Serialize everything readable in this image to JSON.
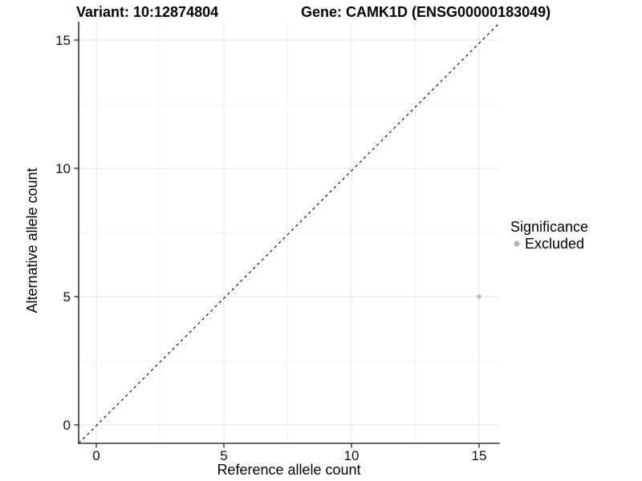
{
  "chart_data": {
    "type": "scatter",
    "title_left": "Variant: 10:12874804",
    "title_right": "Gene: CAMK1D (ENSG00000183049)",
    "xlabel": "Reference allele count",
    "ylabel": "Alternative allele count",
    "x_ticks": [
      0,
      5,
      10,
      15
    ],
    "y_ticks": [
      0,
      5,
      10,
      15
    ],
    "xlim": [
      -0.7,
      15.8
    ],
    "ylim": [
      -0.7,
      15.7
    ],
    "grid": "major at ticks, minor at 2.5/7.5/12.5, light gray, white panel",
    "reference_line": {
      "type": "identity y=x",
      "style": "dashed",
      "color": "#000000"
    },
    "series": [
      {
        "name": "Excluded",
        "color": "#bebebe",
        "points": [
          {
            "x": 15,
            "y": 5
          }
        ]
      }
    ],
    "legend": {
      "position": "right",
      "title": "Significance",
      "entries": [
        {
          "label": "Excluded",
          "color": "#b4b4b4"
        }
      ]
    }
  },
  "colors": {
    "background": "#ffffff",
    "grid_major": "#e4e4e4",
    "grid_minor": "#f2f2f2",
    "axis_line": "#333333",
    "text": "#000000"
  }
}
